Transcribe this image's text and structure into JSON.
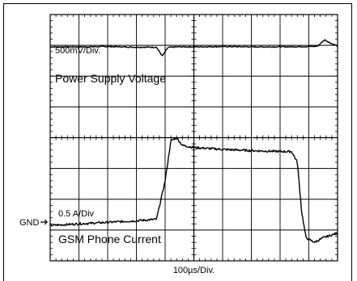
{
  "chart_data": {
    "type": "line",
    "title": "",
    "grid": true,
    "divisions": {
      "x": 10,
      "y": 8
    },
    "xlabel": "100µs/Div.",
    "ylabel": "",
    "annotations": {
      "voltage_scale": "500mV/Div.",
      "voltage_name": "Power Supply Voltage",
      "current_scale": "0.5 A/Div",
      "current_name": "GSM Phone Current",
      "ground_marker": "GND"
    },
    "x_unit": "div",
    "y_unit": "div",
    "series": [
      {
        "name": "Power Supply Voltage",
        "points": [
          [
            0,
            6.95
          ],
          [
            1,
            6.95
          ],
          [
            2,
            6.96
          ],
          [
            3,
            6.94
          ],
          [
            3.7,
            6.94
          ],
          [
            3.9,
            6.65
          ],
          [
            4.1,
            6.93
          ],
          [
            4.4,
            6.95
          ],
          [
            5,
            6.95
          ],
          [
            6,
            6.96
          ],
          [
            7,
            6.95
          ],
          [
            8,
            6.95
          ],
          [
            9,
            6.96
          ],
          [
            9.3,
            6.97
          ],
          [
            9.55,
            7.18
          ],
          [
            9.8,
            7.05
          ],
          [
            10,
            6.98
          ]
        ]
      },
      {
        "name": "GSM Phone Current",
        "points": [
          [
            0,
            1.15
          ],
          [
            1,
            1.2
          ],
          [
            2,
            1.25
          ],
          [
            3,
            1.3
          ],
          [
            3.7,
            1.35
          ],
          [
            4.0,
            2.6
          ],
          [
            4.2,
            3.9
          ],
          [
            4.4,
            4.0
          ],
          [
            4.6,
            3.75
          ],
          [
            5,
            3.68
          ],
          [
            6,
            3.62
          ],
          [
            7,
            3.58
          ],
          [
            8,
            3.55
          ],
          [
            8.4,
            3.55
          ],
          [
            8.6,
            3.2
          ],
          [
            8.75,
            1.6
          ],
          [
            8.9,
            0.75
          ],
          [
            9.2,
            0.6
          ],
          [
            9.5,
            0.75
          ],
          [
            10,
            0.9
          ]
        ]
      }
    ]
  }
}
